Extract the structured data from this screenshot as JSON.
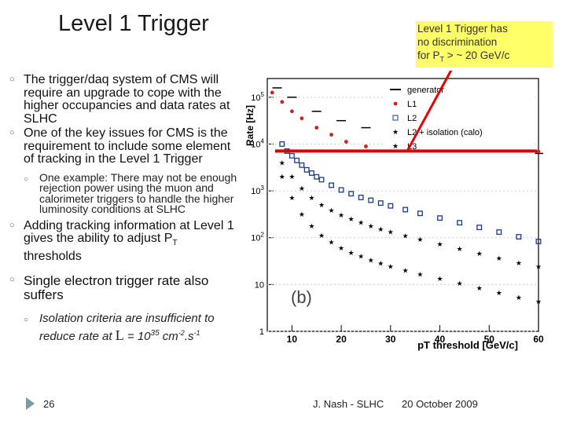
{
  "slide": {
    "title": "Level 1 Trigger",
    "note": {
      "line1": "Level 1 Trigger has",
      "line2": "no discrimination",
      "line3_a": "for P",
      "line3_sub": "T",
      "line3_b": " > ~ 20 GeV/c"
    },
    "bullets": [
      "The trigger/daq system of CMS will require an upgrade to cope with the higher occupancies and data rates at SLHC",
      "One of the key issues for CMS is the requirement to include some element of tracking in the Level 1 Trigger"
    ],
    "sub1": "One example: There may not be enough rejection power using the muon and calorimeter triggers to handle the higher luminosity conditions at SLHC",
    "bullet3_a": "Adding tracking information at Level 1 gives the ability to adjust P",
    "bullet3_sub": "T",
    "bullet3_b": " thresholds",
    "bullet4": "Single electron trigger rate also suffers",
    "sub2_a": "Isolation criteria are insufficient to reduce rate at ",
    "sub2_L": "L",
    "sub2_b": " = 10",
    "sub2_exp": "35",
    "sub2_c": " cm",
    "sub2_exp2": "-2",
    "sub2_d": ".s",
    "sub2_exp3": "-1",
    "page_number": "26",
    "author": "J. Nash - SLHC",
    "date": "20 October 2009"
  },
  "chart_data": {
    "type": "scatter",
    "title": "",
    "xlabel": "pT threshold [GeV/c]",
    "ylabel": "Rate [Hz]",
    "panel_label": "(b)",
    "xlim": [
      5,
      60
    ],
    "ylim_log10": [
      0,
      5.4
    ],
    "x_ticks": [
      "10",
      "20",
      "30",
      "40",
      "50",
      "60"
    ],
    "y_ticks": [
      "1",
      "10",
      "10^2",
      "10^3",
      "10^4",
      "10^5"
    ],
    "legend": [
      "generator",
      "L1",
      "L2",
      "L2 + isolation (calo)",
      "L3"
    ],
    "threshold_line_log10": 3.85,
    "series": [
      {
        "name": "generator",
        "color": "#000000",
        "points_log10": [
          [
            7,
            5.2
          ],
          [
            10,
            5.0
          ],
          [
            15,
            4.7
          ],
          [
            20,
            4.5
          ],
          [
            25,
            4.35
          ],
          [
            30,
            4.2
          ],
          [
            35,
            4.1
          ],
          [
            40,
            4.0
          ],
          [
            45,
            3.95
          ],
          [
            50,
            3.9
          ],
          [
            55,
            3.85
          ],
          [
            60,
            3.8
          ]
        ]
      },
      {
        "name": "L1",
        "color": "#cc2222",
        "points_log10": [
          [
            6,
            5.1
          ],
          [
            8,
            4.9
          ],
          [
            10,
            4.7
          ],
          [
            12,
            4.55
          ],
          [
            15,
            4.35
          ],
          [
            18,
            4.2
          ],
          [
            21,
            4.05
          ],
          [
            25,
            3.95
          ],
          [
            30,
            3.9
          ],
          [
            35,
            3.87
          ],
          [
            40,
            3.85
          ],
          [
            45,
            3.85
          ],
          [
            50,
            3.85
          ],
          [
            55,
            3.84
          ],
          [
            60,
            3.84
          ]
        ]
      },
      {
        "name": "L2",
        "color": "#1a3a8a",
        "points_log10": [
          [
            8,
            4.0
          ],
          [
            9,
            3.85
          ],
          [
            10,
            3.75
          ],
          [
            11,
            3.65
          ],
          [
            12,
            3.55
          ],
          [
            13,
            3.45
          ],
          [
            14,
            3.38
          ],
          [
            15,
            3.3
          ],
          [
            16,
            3.24
          ],
          [
            18,
            3.12
          ],
          [
            20,
            3.02
          ],
          [
            22,
            2.94
          ],
          [
            24,
            2.86
          ],
          [
            26,
            2.8
          ],
          [
            28,
            2.74
          ],
          [
            30,
            2.68
          ],
          [
            33,
            2.6
          ],
          [
            36,
            2.52
          ],
          [
            40,
            2.42
          ],
          [
            44,
            2.32
          ],
          [
            48,
            2.22
          ],
          [
            52,
            2.12
          ],
          [
            56,
            2.02
          ],
          [
            60,
            1.92
          ]
        ]
      },
      {
        "name": "L2 + isolation (calo)",
        "color": "#000000",
        "points_log10": [
          [
            8,
            3.6
          ],
          [
            10,
            3.3
          ],
          [
            12,
            3.05
          ],
          [
            14,
            2.85
          ],
          [
            16,
            2.7
          ],
          [
            18,
            2.58
          ],
          [
            20,
            2.48
          ],
          [
            22,
            2.4
          ],
          [
            24,
            2.32
          ],
          [
            26,
            2.25
          ],
          [
            28,
            2.18
          ],
          [
            30,
            2.12
          ],
          [
            33,
            2.04
          ],
          [
            36,
            1.96
          ],
          [
            40,
            1.86
          ],
          [
            44,
            1.76
          ],
          [
            48,
            1.66
          ],
          [
            52,
            1.56
          ],
          [
            56,
            1.46
          ],
          [
            60,
            1.38
          ]
        ]
      },
      {
        "name": "L3",
        "color": "#000000",
        "points_log10": [
          [
            8,
            3.3
          ],
          [
            10,
            2.85
          ],
          [
            12,
            2.5
          ],
          [
            14,
            2.25
          ],
          [
            16,
            2.05
          ],
          [
            18,
            1.9
          ],
          [
            20,
            1.78
          ],
          [
            22,
            1.68
          ],
          [
            24,
            1.6
          ],
          [
            26,
            1.52
          ],
          [
            28,
            1.45
          ],
          [
            30,
            1.38
          ],
          [
            33,
            1.3
          ],
          [
            36,
            1.22
          ],
          [
            40,
            1.12
          ],
          [
            44,
            1.02
          ],
          [
            48,
            0.92
          ],
          [
            52,
            0.82
          ],
          [
            56,
            0.72
          ],
          [
            60,
            0.64
          ]
        ]
      }
    ]
  }
}
